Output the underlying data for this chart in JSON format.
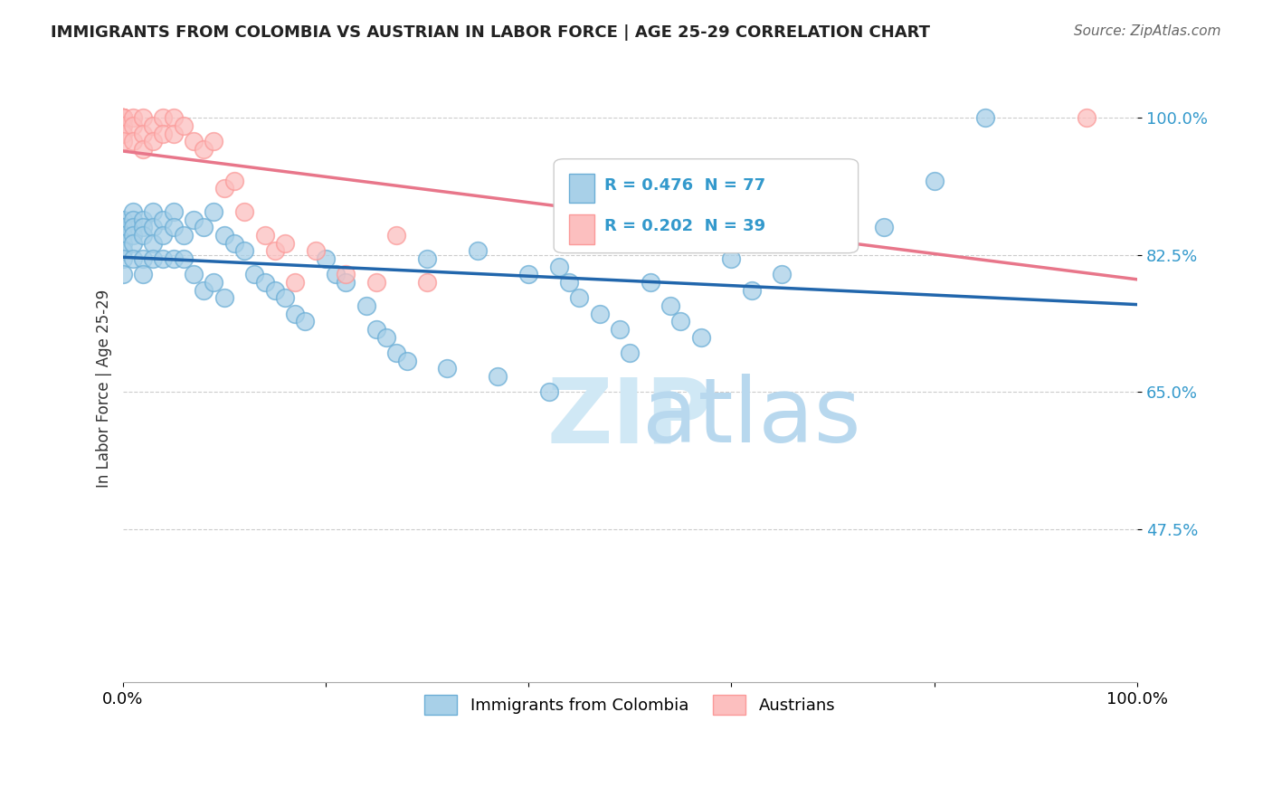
{
  "title": "IMMIGRANTS FROM COLOMBIA VS AUSTRIAN IN LABOR FORCE | AGE 25-29 CORRELATION CHART",
  "source": "Source: ZipAtlas.com",
  "xlabel": "",
  "ylabel": "In Labor Force | Age 25-29",
  "xlim": [
    0.0,
    1.0
  ],
  "ylim": [
    0.28,
    1.03
  ],
  "xticks": [
    0.0,
    0.2,
    0.4,
    0.6,
    0.8,
    1.0
  ],
  "xticklabels": [
    "0.0%",
    "",
    "",
    "",
    "",
    "100.0%"
  ],
  "ytick_positions": [
    1.0,
    0.825,
    0.65,
    0.475
  ],
  "ytick_labels": [
    "100.0%",
    "82.5%",
    "65.0%",
    "47.5%"
  ],
  "grid_color": "#cccccc",
  "background_color": "#ffffff",
  "r_colombia": 0.476,
  "n_colombia": 77,
  "r_austrian": 0.202,
  "n_austrian": 39,
  "colombia_color": "#6baed6",
  "austrian_color": "#fb9a99",
  "colombia_scatter_color": "#a8d0e8",
  "austrian_scatter_color": "#fcbfbf",
  "trend_colombia_color": "#2166ac",
  "trend_austrian_color": "#e8768a",
  "colombia_x": [
    0.0,
    0.0,
    0.0,
    0.0,
    0.0,
    0.0,
    0.0,
    0.01,
    0.01,
    0.01,
    0.01,
    0.01,
    0.01,
    0.02,
    0.02,
    0.02,
    0.02,
    0.02,
    0.03,
    0.03,
    0.03,
    0.03,
    0.04,
    0.04,
    0.04,
    0.05,
    0.05,
    0.05,
    0.06,
    0.06,
    0.07,
    0.07,
    0.08,
    0.08,
    0.09,
    0.09,
    0.1,
    0.1,
    0.11,
    0.12,
    0.13,
    0.14,
    0.15,
    0.16,
    0.17,
    0.18,
    0.2,
    0.21,
    0.22,
    0.24,
    0.25,
    0.26,
    0.27,
    0.28,
    0.3,
    0.32,
    0.35,
    0.37,
    0.4,
    0.42,
    0.43,
    0.44,
    0.45,
    0.47,
    0.49,
    0.5,
    0.52,
    0.54,
    0.55,
    0.57,
    0.6,
    0.62,
    0.65,
    0.7,
    0.75,
    0.8,
    0.85
  ],
  "colombia_y": [
    0.87,
    0.86,
    0.85,
    0.84,
    0.83,
    0.82,
    0.8,
    0.88,
    0.87,
    0.86,
    0.85,
    0.84,
    0.82,
    0.87,
    0.86,
    0.85,
    0.82,
    0.8,
    0.88,
    0.86,
    0.84,
    0.82,
    0.87,
    0.85,
    0.82,
    0.88,
    0.86,
    0.82,
    0.85,
    0.82,
    0.87,
    0.8,
    0.86,
    0.78,
    0.88,
    0.79,
    0.85,
    0.77,
    0.84,
    0.83,
    0.8,
    0.79,
    0.78,
    0.77,
    0.75,
    0.74,
    0.82,
    0.8,
    0.79,
    0.76,
    0.73,
    0.72,
    0.7,
    0.69,
    0.82,
    0.68,
    0.83,
    0.67,
    0.8,
    0.65,
    0.81,
    0.79,
    0.77,
    0.75,
    0.73,
    0.7,
    0.79,
    0.76,
    0.74,
    0.72,
    0.82,
    0.78,
    0.8,
    0.85,
    0.86,
    0.92,
    1.0
  ],
  "austrian_x": [
    0.0,
    0.0,
    0.0,
    0.0,
    0.0,
    0.0,
    0.0,
    0.0,
    0.0,
    0.0,
    0.01,
    0.01,
    0.01,
    0.02,
    0.02,
    0.02,
    0.03,
    0.03,
    0.04,
    0.04,
    0.05,
    0.05,
    0.06,
    0.07,
    0.08,
    0.09,
    0.1,
    0.11,
    0.12,
    0.14,
    0.15,
    0.16,
    0.17,
    0.19,
    0.22,
    0.25,
    0.27,
    0.3,
    0.95
  ],
  "austrian_y": [
    1.0,
    1.0,
    1.0,
    1.0,
    1.0,
    1.0,
    1.0,
    0.99,
    0.98,
    0.97,
    1.0,
    0.99,
    0.97,
    1.0,
    0.98,
    0.96,
    0.99,
    0.97,
    1.0,
    0.98,
    1.0,
    0.98,
    0.99,
    0.97,
    0.96,
    0.97,
    0.91,
    0.92,
    0.88,
    0.85,
    0.83,
    0.84,
    0.79,
    0.83,
    0.8,
    0.79,
    0.85,
    0.79,
    1.0
  ],
  "watermark_text": "ZIPatlas",
  "watermark_color": "#d0e8f5",
  "legend_box_color": "#e8f4fb",
  "r_color": "#3399cc",
  "n_color_colombia": "#33aa33",
  "n_color_austrian": "#33aa33"
}
